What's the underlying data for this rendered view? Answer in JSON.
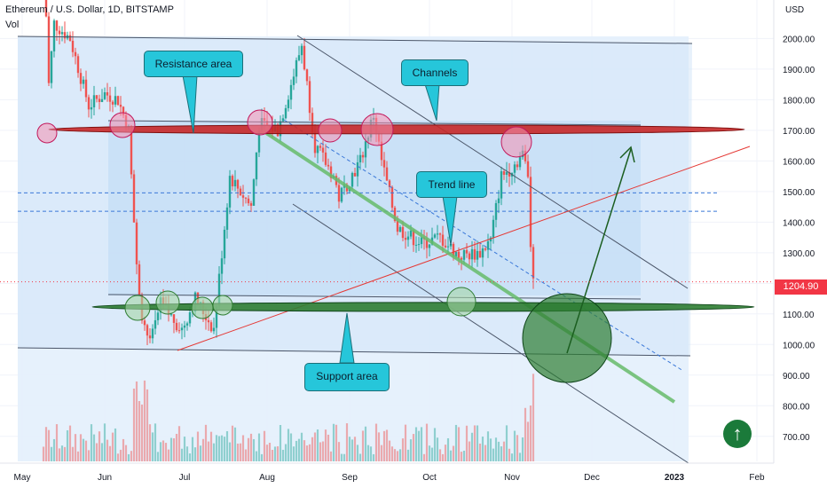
{
  "header": {
    "title": "Ethereum / U.S. Dollar, 1D, BITSTAMP",
    "volume_label": "Vol",
    "currency": "USD"
  },
  "last_price": "1204.90",
  "callouts": {
    "resistance": "Resistance area",
    "channels": "Channels",
    "trend": "Trend line",
    "support": "Support area"
  },
  "colors": {
    "up": "#26a69a",
    "down": "#ef5350",
    "resistance": "#c62828",
    "support": "#2e7d32",
    "box": "#bbdefb",
    "callout": "#26c6da",
    "trend_line": "#66bb6a",
    "price_tag": "#f23645"
  },
  "chart_data": {
    "type": "candlestick",
    "symbol": "ETH/USD",
    "interval": "1D",
    "x_ticks": [
      "May",
      "Jun",
      "Jul",
      "Aug",
      "Sep",
      "Oct",
      "Nov",
      "Dec",
      "2023",
      "Feb"
    ],
    "y_ticks": [
      "2000.00",
      "1900.00",
      "1800.00",
      "1700.00",
      "1600.00",
      "1500.00",
      "1400.00",
      "1300.00",
      "1200.00",
      "1100.00",
      "1000.00",
      "900.00",
      "800.00",
      "700.00"
    ],
    "ylim": [
      630,
      2100
    ],
    "price_anchors": [
      [
        "2022-05-09",
        2300
      ],
      [
        "2022-05-11",
        1850
      ],
      [
        "2022-05-13",
        2050
      ],
      [
        "2022-05-19",
        2000
      ],
      [
        "2022-05-26",
        1780
      ],
      [
        "2022-06-01",
        1820
      ],
      [
        "2022-06-06",
        1800
      ],
      [
        "2022-06-10",
        1700
      ],
      [
        "2022-06-13",
        1250
      ],
      [
        "2022-06-15",
        1100
      ],
      [
        "2022-06-18",
        1000
      ],
      [
        "2022-06-22",
        1130
      ],
      [
        "2022-06-30",
        1050
      ],
      [
        "2022-07-05",
        1150
      ],
      [
        "2022-07-12",
        1050
      ],
      [
        "2022-07-18",
        1550
      ],
      [
        "2022-07-26",
        1450
      ],
      [
        "2022-07-29",
        1720
      ],
      [
        "2022-08-05",
        1700
      ],
      [
        "2022-08-10",
        1850
      ],
      [
        "2022-08-14",
        1980
      ],
      [
        "2022-08-19",
        1650
      ],
      [
        "2022-08-26",
        1550
      ],
      [
        "2022-08-28",
        1480
      ],
      [
        "2022-09-05",
        1600
      ],
      [
        "2022-09-10",
        1750
      ],
      [
        "2022-09-13",
        1600
      ],
      [
        "2022-09-19",
        1380
      ],
      [
        "2022-09-28",
        1330
      ],
      [
        "2022-10-05",
        1350
      ],
      [
        "2022-10-12",
        1290
      ],
      [
        "2022-10-20",
        1300
      ],
      [
        "2022-10-24",
        1340
      ],
      [
        "2022-10-28",
        1550
      ],
      [
        "2022-11-01",
        1580
      ],
      [
        "2022-11-05",
        1620
      ],
      [
        "2022-11-07",
        1560
      ],
      [
        "2022-11-08",
        1330
      ],
      [
        "2022-11-09",
        1204.9
      ]
    ],
    "annotations": {
      "resistance_level": 1700,
      "support_level": 1120,
      "dashed_levels": [
        1510,
        1450
      ]
    }
  }
}
